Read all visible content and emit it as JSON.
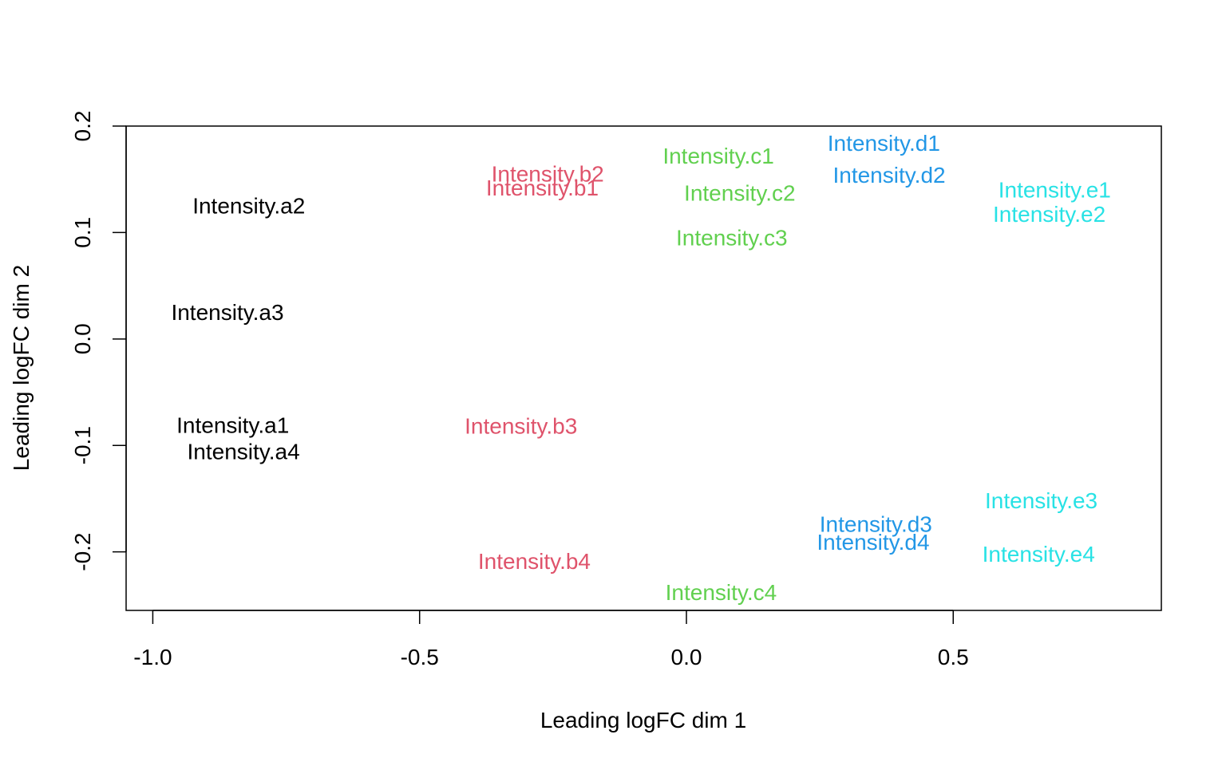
{
  "chart_data": {
    "type": "scatter",
    "title": "",
    "xlabel": "Leading logFC dim 1",
    "ylabel": "Leading logFC dim 2",
    "xlim": [
      -1.05,
      0.89
    ],
    "ylim": [
      -0.255,
      0.2
    ],
    "xticks": [
      -1.0,
      -0.5,
      0.0,
      0.5
    ],
    "xtick_labels": [
      "-1.0",
      "-0.5",
      "0.0",
      "0.5"
    ],
    "yticks": [
      -0.2,
      -0.1,
      0.0,
      0.1,
      0.2
    ],
    "ytick_labels": [
      "-0.2",
      "-0.1",
      "0.0",
      "0.1",
      "0.2"
    ],
    "grid": false,
    "legend": "none",
    "colors": {
      "a": "#000000",
      "b": "#DF536B",
      "c": "#61D04F",
      "d": "#2297E6",
      "e": "#28E2E5"
    },
    "points": [
      {
        "label": "Intensity.a1",
        "group": "a",
        "x": -0.85,
        "y": -0.081
      },
      {
        "label": "Intensity.a2",
        "group": "a",
        "x": -0.82,
        "y": 0.125
      },
      {
        "label": "Intensity.a3",
        "group": "a",
        "x": -0.86,
        "y": 0.025
      },
      {
        "label": "Intensity.a4",
        "group": "a",
        "x": -0.83,
        "y": -0.106
      },
      {
        "label": "Intensity.b1",
        "group": "b",
        "x": -0.27,
        "y": 0.142
      },
      {
        "label": "Intensity.b2",
        "group": "b",
        "x": -0.26,
        "y": 0.155
      },
      {
        "label": "Intensity.b3",
        "group": "b",
        "x": -0.31,
        "y": -0.082
      },
      {
        "label": "Intensity.b4",
        "group": "b",
        "x": -0.285,
        "y": -0.209
      },
      {
        "label": "Intensity.c1",
        "group": "c",
        "x": 0.06,
        "y": 0.172
      },
      {
        "label": "Intensity.c2",
        "group": "c",
        "x": 0.1,
        "y": 0.137
      },
      {
        "label": "Intensity.c3",
        "group": "c",
        "x": 0.085,
        "y": 0.095
      },
      {
        "label": "Intensity.c4",
        "group": "c",
        "x": 0.065,
        "y": -0.238
      },
      {
        "label": "Intensity.d1",
        "group": "d",
        "x": 0.37,
        "y": 0.184
      },
      {
        "label": "Intensity.d2",
        "group": "d",
        "x": 0.38,
        "y": 0.154
      },
      {
        "label": "Intensity.d3",
        "group": "d",
        "x": 0.355,
        "y": -0.174
      },
      {
        "label": "Intensity.d4",
        "group": "d",
        "x": 0.35,
        "y": -0.191
      },
      {
        "label": "Intensity.e1",
        "group": "e",
        "x": 0.69,
        "y": 0.14
      },
      {
        "label": "Intensity.e2",
        "group": "e",
        "x": 0.68,
        "y": 0.117
      },
      {
        "label": "Intensity.e3",
        "group": "e",
        "x": 0.665,
        "y": -0.152
      },
      {
        "label": "Intensity.e4",
        "group": "e",
        "x": 0.66,
        "y": -0.202
      }
    ]
  }
}
